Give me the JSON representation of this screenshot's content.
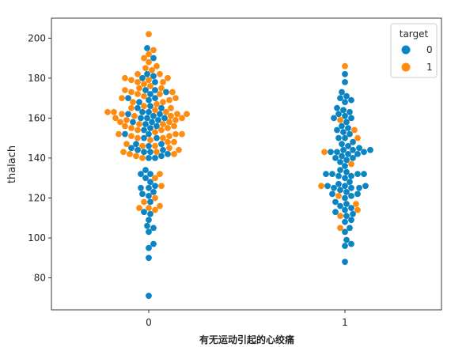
{
  "colors": {
    "class_0": "#0b84c3",
    "class_1": "#ff8c10",
    "axis": "#262626"
  },
  "chart_data": {
    "type": "scatter",
    "style": "swarm",
    "xlabel": "有无运动引起的心绞痛",
    "ylabel": "thalach",
    "categories": [
      "0",
      "1"
    ],
    "ylim": [
      64,
      210
    ],
    "yticks": [
      80,
      100,
      120,
      140,
      160,
      180,
      200
    ],
    "grid": false,
    "legend": {
      "title": "target",
      "position": "top-right",
      "labels": [
        "0",
        "1"
      ]
    },
    "groups": [
      {
        "category": "0",
        "series": [
          {
            "name": "0",
            "values": [
              71,
              90,
              95,
              97,
              103,
              105,
              106,
              109,
              112,
              113,
              118,
              121,
              122,
              123,
              125,
              125,
              126,
              128,
              130,
              132,
              132,
              134,
              140,
              140,
              141,
              142,
              143,
              143,
              144,
              144,
              145,
              146,
              147,
              147,
              150,
              150,
              152,
              152,
              154,
              155,
              156,
              157,
              158,
              158,
              159,
              160,
              160,
              160,
              161,
              162,
              162,
              163,
              163,
              165,
              165,
              166,
              168,
              169,
              170,
              170,
              172,
              173,
              174,
              174,
              178,
              180,
              181,
              182,
              190,
              195
            ]
          },
          {
            "name": "1",
            "values": [
              114,
              115,
              115,
              116,
              118,
              120,
              126,
              130,
              132,
              140,
              141,
              142,
              142,
              143,
              143,
              144,
              145,
              146,
              146,
              147,
              148,
              148,
              149,
              150,
              150,
              151,
              151,
              152,
              152,
              152,
              153,
              154,
              154,
              155,
              155,
              156,
              156,
              157,
              157,
              158,
              158,
              159,
              159,
              160,
              160,
              161,
              161,
              162,
              162,
              162,
              163,
              163,
              163,
              164,
              165,
              165,
              166,
              167,
              168,
              168,
              169,
              170,
              170,
              171,
              172,
              172,
              173,
              173,
              174,
              175,
              175,
              176,
              177,
              178,
              178,
              179,
              179,
              180,
              180,
              182,
              182,
              184,
              185,
              186,
              188,
              190,
              192,
              194,
              202
            ]
          }
        ]
      },
      {
        "category": "1",
        "series": [
          {
            "name": "0",
            "values": [
              88,
              96,
              97,
              99,
              103,
              105,
              108,
              109,
              111,
              112,
              113,
              114,
              115,
              116,
              117,
              118,
              120,
              121,
              122,
              122,
              123,
              124,
              125,
              125,
              125,
              126,
              126,
              126,
              127,
              128,
              130,
              131,
              131,
              132,
              132,
              132,
              132,
              133,
              134,
              136,
              138,
              139,
              140,
              140,
              141,
              142,
              142,
              143,
              143,
              143,
              144,
              144,
              144,
              145,
              146,
              147,
              148,
              150,
              150,
              152,
              153,
              154,
              155,
              156,
              158,
              160,
              160,
              161,
              162,
              163,
              164,
              165,
              168,
              169,
              170,
              171,
              173,
              178,
              182
            ]
          },
          {
            "name": "1",
            "values": [
              105,
              111,
              114,
              117,
              121,
              126,
              137,
              143,
              150,
              154,
              159,
              186
            ]
          }
        ]
      }
    ]
  }
}
